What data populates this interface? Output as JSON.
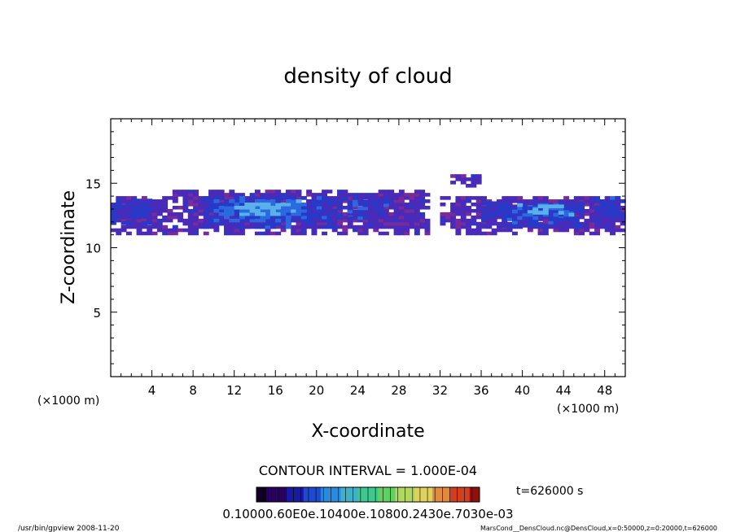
{
  "chart_data": {
    "type": "heatmap",
    "title": "density of cloud",
    "xlabel": "X-coordinate",
    "ylabel": "Z-coordinate",
    "x_unit_left": "(×1000 m)",
    "x_unit_right": "(×1000 m)",
    "xlim": [
      0,
      50
    ],
    "ylim": [
      0,
      20
    ],
    "x_ticks": [
      4,
      8,
      12,
      16,
      20,
      24,
      28,
      32,
      36,
      40,
      44,
      48
    ],
    "y_ticks": [
      5,
      10,
      15
    ],
    "contour_interval": "CONTOUR INTERVAL = 1.000E-04",
    "time_label": "t=626000 s",
    "colorbar_labels": "0.10000.60E0e.10400e.10800.2430e.7030e-03",
    "colorbar_colors": [
      "#120022",
      "#2a0060",
      "#1a1aa0",
      "#1e4ad0",
      "#2a8ae0",
      "#40b0c8",
      "#3cc890",
      "#60d060",
      "#b0d860",
      "#e0d060",
      "#e08a40",
      "#d04020",
      "#901010"
    ],
    "footer_left": "/usr/bin/gpview  2008-11-20",
    "footer_right": "MarsCond__DensCloud.nc@DensCloud,x=0:50000,z=0:20000,t=626000",
    "grid": false,
    "cloud_regions": [
      {
        "level": 1,
        "x": [
          0,
          6
        ],
        "z": [
          11,
          14
        ]
      },
      {
        "level": 1,
        "x": [
          6,
          31
        ],
        "z": [
          11,
          14.5
        ]
      },
      {
        "level": 1,
        "x": [
          33,
          36
        ],
        "z": [
          14.7,
          15.5
        ]
      },
      {
        "level": 1,
        "x": [
          32,
          50
        ],
        "z": [
          11,
          14
        ]
      },
      {
        "level": 2,
        "x": [
          0,
          4
        ],
        "z": [
          11.8,
          13.6
        ]
      },
      {
        "level": 2,
        "x": [
          9,
          22
        ],
        "z": [
          11.5,
          14
        ]
      },
      {
        "level": 2,
        "x": [
          22,
          27
        ],
        "z": [
          12.2,
          13.8
        ]
      },
      {
        "level": 2,
        "x": [
          36,
          46
        ],
        "z": [
          11.6,
          13.6
        ]
      },
      {
        "level": 2,
        "x": [
          47,
          50
        ],
        "z": [
          12,
          13.8
        ]
      },
      {
        "level": 3,
        "x": [
          10,
          19
        ],
        "z": [
          12,
          13.6
        ]
      },
      {
        "level": 3,
        "x": [
          39,
          45
        ],
        "z": [
          12.2,
          13.4
        ]
      },
      {
        "level": 4,
        "x": [
          12,
          17
        ],
        "z": [
          12.5,
          13.3
        ]
      },
      {
        "level": 4,
        "x": [
          41,
          44
        ],
        "z": [
          12.6,
          13.2
        ]
      }
    ]
  }
}
